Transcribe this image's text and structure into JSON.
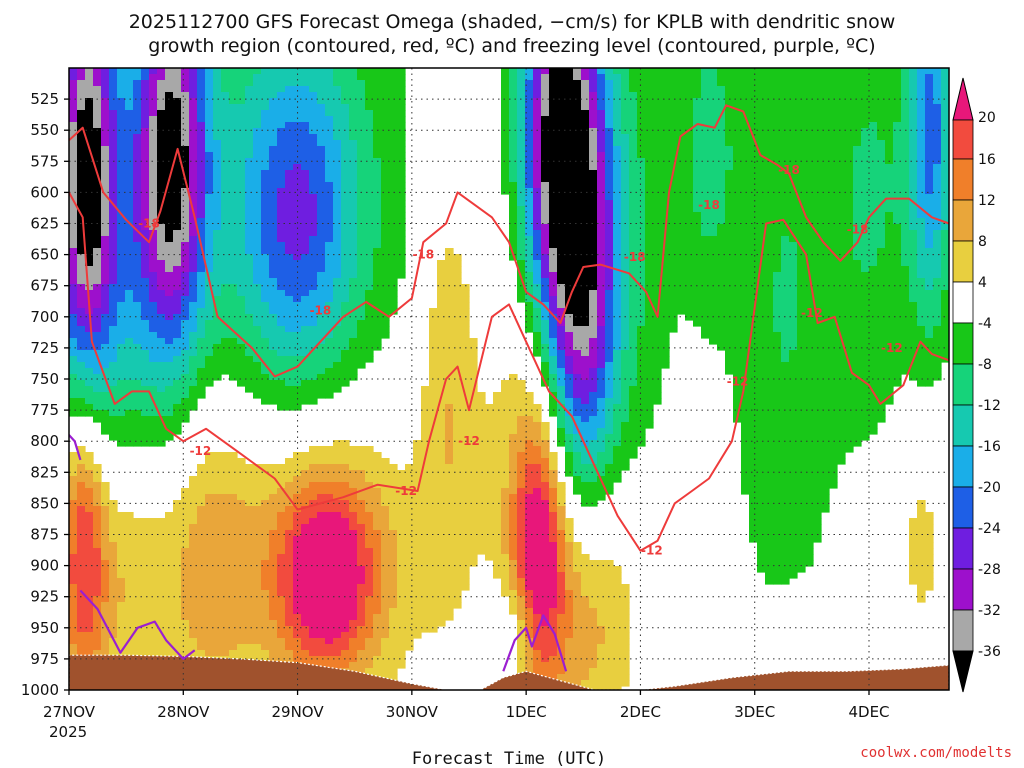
{
  "title_line1": "2025112700 GFS Forecast Omega (shaded, −cm/s) for KPLB with dendritic snow",
  "title_line2": "growth region (contoured, red, ºC) and freezing level (contoured, purple, ºC)",
  "xlabel": "Forecast Time (UTC)",
  "credit": "coolwx.com/modelts",
  "colors": {
    "snow_growth_contour": "#ee3b3b",
    "freezing_level_contour": "#9b1fd1",
    "terrain": "#a0522d",
    "grid": "#333333"
  },
  "colorbar": {
    "labels": [
      "20",
      "16",
      "12",
      "8",
      "4",
      "-4",
      "-8",
      "-12",
      "-16",
      "-20",
      "-24",
      "-28",
      "-32",
      "-36"
    ],
    "colors": [
      "#f0136b",
      "#f24b3e",
      "#f07f2a",
      "#e9a63a",
      "#e8cf3f",
      "#f0ea46",
      "#ffffff",
      "#18c718",
      "#16d37a",
      "#16c9b0",
      "#1aaee8",
      "#1e5fe6",
      "#6f1ee0",
      "#9d10cc",
      "#a8a8a8",
      "#111111"
    ],
    "over_color": "#e8177a",
    "under_color": "#000000"
  },
  "chart_data": {
    "type": "heatmap",
    "x_axis": {
      "label": "Forecast Time (UTC)",
      "ticks": [
        "27NOV",
        "28NOV",
        "29NOV",
        "30NOV",
        "1DEC",
        "2DEC",
        "3DEC",
        "4DEC"
      ],
      "year_label": "2025",
      "range_days": [
        0,
        7.7
      ]
    },
    "y_axis": {
      "units": "hPa",
      "ticks": [
        525,
        550,
        575,
        600,
        625,
        650,
        675,
        700,
        725,
        750,
        775,
        800,
        825,
        850,
        875,
        900,
        925,
        950,
        975,
        1000
      ],
      "range": [
        500,
        1000
      ],
      "inverted": true
    },
    "grid": true,
    "omega_blobs": [
      {
        "t": 0.15,
        "p": 580,
        "st": 0.18,
        "sp": 120,
        "amp": -30
      },
      {
        "t": 0.9,
        "p": 570,
        "st": 0.22,
        "sp": 110,
        "amp": -31
      },
      {
        "t": 0.3,
        "p": 660,
        "st": 0.5,
        "sp": 150,
        "amp": -12
      },
      {
        "t": 2.0,
        "p": 620,
        "st": 0.35,
        "sp": 90,
        "amp": -17
      },
      {
        "t": 1.9,
        "p": 610,
        "st": 0.9,
        "sp": 170,
        "amp": -9
      },
      {
        "t": 4.25,
        "p": 560,
        "st": 0.22,
        "sp": 110,
        "amp": -32
      },
      {
        "t": 4.5,
        "p": 680,
        "st": 0.2,
        "sp": 130,
        "amp": -24
      },
      {
        "t": 4.6,
        "p": 640,
        "st": 0.45,
        "sp": 160,
        "amp": -12
      },
      {
        "t": 5.6,
        "p": 560,
        "st": 0.18,
        "sp": 90,
        "amp": -8
      },
      {
        "t": 6.25,
        "p": 690,
        "st": 0.35,
        "sp": 210,
        "amp": -8
      },
      {
        "t": 7.05,
        "p": 600,
        "st": 0.3,
        "sp": 150,
        "amp": -8
      },
      {
        "t": 7.55,
        "p": 550,
        "st": 0.14,
        "sp": 110,
        "amp": -20
      },
      {
        "t": 3.95,
        "p": 950,
        "st": 0.15,
        "sp": 30,
        "amp": -9
      },
      {
        "t": 0.12,
        "p": 880,
        "st": 0.15,
        "sp": 90,
        "amp": 22
      },
      {
        "t": 0.5,
        "p": 900,
        "st": 0.25,
        "sp": 80,
        "amp": 9
      },
      {
        "t": 1.2,
        "p": 890,
        "st": 0.3,
        "sp": 100,
        "amp": 9
      },
      {
        "t": 2.25,
        "p": 910,
        "st": 0.3,
        "sp": 55,
        "amp": 22
      },
      {
        "t": 2.2,
        "p": 880,
        "st": 0.75,
        "sp": 90,
        "amp": 10
      },
      {
        "t": 3.3,
        "p": 730,
        "st": 0.18,
        "sp": 120,
        "amp": 8
      },
      {
        "t": 4.1,
        "p": 900,
        "st": 0.16,
        "sp": 80,
        "amp": 22
      },
      {
        "t": 4.55,
        "p": 930,
        "st": 0.3,
        "sp": 80,
        "amp": 12
      },
      {
        "t": 4.1,
        "p": 750,
        "st": 0.35,
        "sp": 140,
        "amp": 9
      },
      {
        "t": 6.5,
        "p": 965,
        "st": 0.3,
        "sp": 25,
        "amp": 6
      },
      {
        "t": 7.45,
        "p": 880,
        "st": 0.15,
        "sp": 60,
        "amp": 6
      }
    ],
    "dgz_contours": [
      {
        "level": -18,
        "points": [
          [
            0,
            558
          ],
          [
            0.12,
            548
          ],
          [
            0.3,
            600
          ],
          [
            0.5,
            622
          ],
          [
            0.7,
            640
          ],
          [
            0.8,
            615
          ],
          [
            0.95,
            565
          ],
          [
            1.1,
            620
          ],
          [
            1.3,
            700
          ],
          [
            1.6,
            725
          ],
          [
            1.8,
            748
          ],
          [
            2.0,
            740
          ],
          [
            2.2,
            720
          ],
          [
            2.4,
            700
          ],
          [
            2.6,
            688
          ],
          [
            2.8,
            700
          ],
          [
            3.0,
            685
          ],
          [
            3.1,
            640
          ],
          [
            3.3,
            625
          ],
          [
            3.4,
            600
          ],
          [
            3.7,
            620
          ],
          [
            3.85,
            640
          ],
          [
            4.0,
            680
          ],
          [
            4.15,
            690
          ],
          [
            4.3,
            705
          ],
          [
            4.4,
            680
          ],
          [
            4.5,
            660
          ],
          [
            4.65,
            658
          ],
          [
            4.9,
            665
          ],
          [
            5.05,
            680
          ],
          [
            5.15,
            700
          ],
          [
            5.25,
            600
          ],
          [
            5.35,
            555
          ],
          [
            5.5,
            545
          ],
          [
            5.65,
            548
          ],
          [
            5.75,
            530
          ],
          [
            5.9,
            535
          ],
          [
            6.05,
            570
          ],
          [
            6.2,
            578
          ],
          [
            6.3,
            585
          ],
          [
            6.45,
            620
          ],
          [
            6.6,
            640
          ],
          [
            6.75,
            655
          ],
          [
            6.9,
            640
          ],
          [
            7.0,
            620
          ],
          [
            7.15,
            605
          ],
          [
            7.35,
            605
          ],
          [
            7.55,
            620
          ],
          [
            7.7,
            625
          ]
        ]
      },
      {
        "level": -12,
        "points": [
          [
            0,
            600
          ],
          [
            0.12,
            620
          ],
          [
            0.2,
            720
          ],
          [
            0.4,
            770
          ],
          [
            0.55,
            760
          ],
          [
            0.7,
            760
          ],
          [
            0.85,
            790
          ],
          [
            1.0,
            800
          ],
          [
            1.2,
            790
          ],
          [
            1.5,
            810
          ],
          [
            1.8,
            830
          ],
          [
            2.0,
            855
          ],
          [
            2.2,
            850
          ],
          [
            2.4,
            845
          ],
          [
            2.7,
            835
          ],
          [
            3.05,
            840
          ],
          [
            3.15,
            800
          ],
          [
            3.3,
            750
          ],
          [
            3.4,
            740
          ],
          [
            3.5,
            775
          ],
          [
            3.7,
            700
          ],
          [
            3.85,
            690
          ],
          [
            4.0,
            720
          ],
          [
            4.2,
            760
          ],
          [
            4.4,
            780
          ],
          [
            4.6,
            820
          ],
          [
            4.8,
            860
          ],
          [
            5.0,
            888
          ],
          [
            5.15,
            880
          ],
          [
            5.3,
            850
          ],
          [
            5.45,
            840
          ],
          [
            5.6,
            830
          ],
          [
            5.8,
            800
          ],
          [
            5.9,
            760
          ],
          [
            6.1,
            625
          ],
          [
            6.25,
            622
          ],
          [
            6.45,
            650
          ],
          [
            6.55,
            705
          ],
          [
            6.7,
            700
          ],
          [
            6.85,
            745
          ],
          [
            7.0,
            755
          ],
          [
            7.1,
            770
          ],
          [
            7.3,
            755
          ],
          [
            7.45,
            720
          ],
          [
            7.55,
            730
          ],
          [
            7.7,
            735
          ]
        ]
      }
    ],
    "dgz_labels": [
      {
        "text": "-18",
        "t": 0.7,
        "p": 625
      },
      {
        "text": "-18",
        "t": 3.1,
        "p": 650
      },
      {
        "text": "-18",
        "t": 2.2,
        "p": 695
      },
      {
        "text": "-18",
        "t": 5.6,
        "p": 610
      },
      {
        "text": "-18",
        "t": 4.95,
        "p": 652
      },
      {
        "text": "-18",
        "t": 6.3,
        "p": 582
      },
      {
        "text": "-18",
        "t": 6.9,
        "p": 630
      },
      {
        "text": "-12",
        "t": 1.15,
        "p": 808
      },
      {
        "text": "-12",
        "t": 2.95,
        "p": 840
      },
      {
        "text": "-12",
        "t": 3.5,
        "p": 800
      },
      {
        "text": "-12",
        "t": 5.1,
        "p": 888
      },
      {
        "text": "-12",
        "t": 5.85,
        "p": 752
      },
      {
        "text": "-12",
        "t": 6.5,
        "p": 697
      },
      {
        "text": "-12",
        "t": 7.2,
        "p": 725
      }
    ],
    "freezing_contours": [
      {
        "level": 0,
        "points": [
          [
            0,
            795
          ],
          [
            0.05,
            800
          ],
          [
            0.1,
            815
          ]
        ]
      },
      {
        "level": 0,
        "points": [
          [
            0.1,
            920
          ],
          [
            0.25,
            935
          ],
          [
            0.45,
            970
          ],
          [
            0.6,
            950
          ],
          [
            0.75,
            945
          ],
          [
            0.85,
            960
          ],
          [
            1.0,
            975
          ],
          [
            1.1,
            968
          ]
        ]
      },
      {
        "level": 0,
        "points": [
          [
            3.8,
            985
          ],
          [
            3.9,
            960
          ],
          [
            4.0,
            950
          ],
          [
            4.05,
            965
          ],
          [
            4.15,
            940
          ],
          [
            4.25,
            955
          ],
          [
            4.35,
            985
          ]
        ]
      }
    ],
    "terrain_surface_hpa": [
      [
        0,
        972
      ],
      [
        0.5,
        972
      ],
      [
        1.0,
        973
      ],
      [
        1.5,
        975
      ],
      [
        2.0,
        978
      ],
      [
        2.5,
        985
      ],
      [
        3.0,
        995
      ],
      [
        3.3,
        1000
      ],
      [
        3.6,
        1000
      ],
      [
        3.8,
        990
      ],
      [
        4.0,
        985
      ],
      [
        4.2,
        990
      ],
      [
        4.6,
        1000
      ],
      [
        5.0,
        1000
      ],
      [
        5.3,
        997
      ],
      [
        5.8,
        990
      ],
      [
        6.3,
        985
      ],
      [
        6.8,
        985
      ],
      [
        7.3,
        983
      ],
      [
        7.7,
        980
      ]
    ]
  }
}
